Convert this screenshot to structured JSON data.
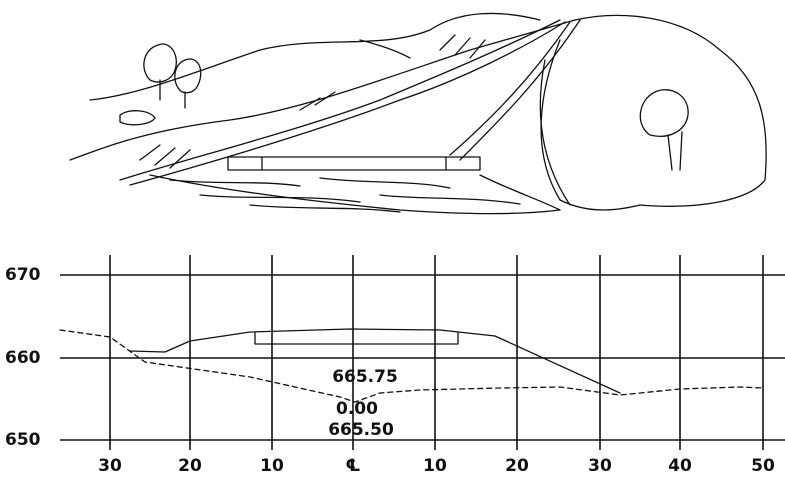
{
  "profile": {
    "y_labels": [
      "670",
      "660",
      "650"
    ],
    "x_labels": [
      "30",
      "20",
      "10",
      "℄",
      "10",
      "20",
      "30",
      "40",
      "50"
    ],
    "annotations": [
      "665.75",
      "0.00",
      "665.50"
    ]
  }
}
